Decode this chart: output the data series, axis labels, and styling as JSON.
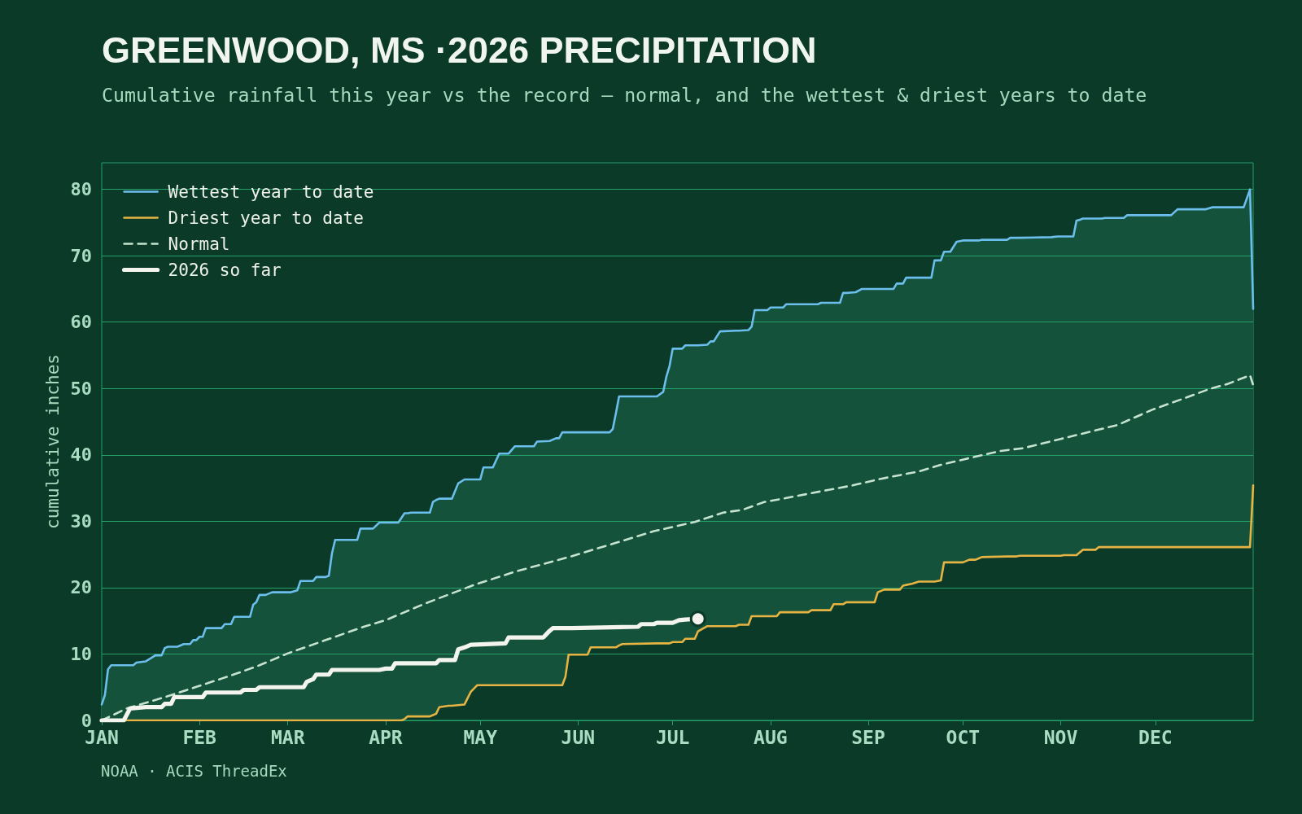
{
  "chart_data": {
    "type": "line",
    "title": "GREENWOOD, MS ·2026 PRECIPITATION",
    "subtitle": "Cumulative rainfall this year vs the record — normal, and the wettest & driest years to date",
    "ylabel": "cumulative inches",
    "annotations": [
      "NOAA · ACIS ThreadEx"
    ],
    "xlim": [
      "2026-01-01",
      "2027-01-01"
    ],
    "xticks": [
      {
        "value": "2026-01-01",
        "label": "JAN"
      },
      {
        "value": "2026-02-01",
        "label": "FEB"
      },
      {
        "value": "2026-03-01",
        "label": "MAR"
      },
      {
        "value": "2026-04-01",
        "label": "APR"
      },
      {
        "value": "2026-05-01",
        "label": "MAY"
      },
      {
        "value": "2026-06-01",
        "label": "JUN"
      },
      {
        "value": "2026-07-01",
        "label": "JUL"
      },
      {
        "value": "2026-08-01",
        "label": "AUG"
      },
      {
        "value": "2026-09-01",
        "label": "SEP"
      },
      {
        "value": "2026-10-01",
        "label": "OCT"
      },
      {
        "value": "2026-11-01",
        "label": "NOV"
      },
      {
        "value": "2026-12-01",
        "label": "DEC"
      }
    ],
    "ylim": [
      0,
      84
    ],
    "yticks": [
      0,
      10,
      20,
      30,
      40,
      50,
      60,
      70,
      80
    ],
    "grid": "y",
    "legend": "top left",
    "x": [
      "2026-01-01",
      "2026-01-02",
      "2026-01-03",
      "2026-01-04",
      "2026-01-11",
      "2026-01-12",
      "2026-01-15",
      "2026-01-18",
      "2026-01-20",
      "2026-01-21",
      "2026-01-22",
      "2026-01-25",
      "2026-01-27",
      "2026-01-29",
      "2026-01-30",
      "2026-01-31",
      "2026-02-01",
      "2026-02-02",
      "2026-02-03",
      "2026-02-08",
      "2026-02-09",
      "2026-02-11",
      "2026-02-12",
      "2026-02-17",
      "2026-02-18",
      "2026-02-19",
      "2026-02-20",
      "2026-02-22",
      "2026-02-24",
      "2026-03-02",
      "2026-03-04",
      "2026-03-05",
      "2026-03-09",
      "2026-03-10",
      "2026-03-13",
      "2026-03-14",
      "2026-03-15",
      "2026-03-16",
      "2026-03-23",
      "2026-03-24",
      "2026-03-28",
      "2026-03-30",
      "2026-04-05",
      "2026-04-06",
      "2026-04-07",
      "2026-04-08",
      "2026-04-09",
      "2026-04-15",
      "2026-04-16",
      "2026-04-17",
      "2026-04-18",
      "2026-04-21",
      "2026-04-22",
      "2026-04-24",
      "2026-04-26",
      "2026-04-28",
      "2026-04-30",
      "2026-05-01",
      "2026-05-02",
      "2026-05-05",
      "2026-05-07",
      "2026-05-10",
      "2026-05-12",
      "2026-05-18",
      "2026-05-19",
      "2026-05-23",
      "2026-05-25",
      "2026-05-26",
      "2026-05-27",
      "2026-05-28",
      "2026-05-29",
      "2026-06-04",
      "2026-06-05",
      "2026-06-11",
      "2026-06-12",
      "2026-06-13",
      "2026-06-14",
      "2026-06-15",
      "2026-06-26",
      "2026-06-28",
      "2026-06-29",
      "2026-06-30",
      "2026-07-01",
      "2026-07-04",
      "2026-07-05",
      "2026-07-08",
      "2026-07-09",
      "2026-07-12",
      "2026-07-13",
      "2026-07-14",
      "2026-07-16",
      "2026-07-21",
      "2026-07-22",
      "2026-07-25",
      "2026-07-26",
      "2026-07-27",
      "2026-07-31",
      "2026-08-01",
      "2026-08-03",
      "2026-08-04",
      "2026-08-05",
      "2026-08-06",
      "2026-08-13",
      "2026-08-14",
      "2026-08-16",
      "2026-08-17",
      "2026-08-20",
      "2026-08-21",
      "2026-08-23",
      "2026-08-24",
      "2026-08-25",
      "2026-08-28",
      "2026-08-30",
      "2026-09-03",
      "2026-09-04",
      "2026-09-06",
      "2026-09-09",
      "2026-09-10",
      "2026-09-11",
      "2026-09-12",
      "2026-09-13",
      "2026-09-15",
      "2026-09-17",
      "2026-09-21",
      "2026-09-22",
      "2026-09-24",
      "2026-09-25",
      "2026-09-27",
      "2026-09-29",
      "2026-10-01",
      "2026-10-03",
      "2026-10-05",
      "2026-10-06",
      "2026-10-07",
      "2026-10-15",
      "2026-10-16",
      "2026-10-18",
      "2026-10-19",
      "2026-10-29",
      "2026-10-31",
      "2026-11-01",
      "2026-11-02",
      "2026-11-05",
      "2026-11-06",
      "2026-11-07",
      "2026-11-08",
      "2026-11-12",
      "2026-11-13",
      "2026-11-14",
      "2026-11-15",
      "2026-11-21",
      "2026-11-22",
      "2026-12-06",
      "2026-12-08",
      "2026-12-17",
      "2026-12-19",
      "2026-12-29",
      "2026-12-31",
      "2027-01-01"
    ],
    "series": [
      {
        "name": "Wettest year to date",
        "color": "#6cbfec",
        "values": [
          2.4,
          3.8,
          7.7,
          8.3,
          8.3,
          8.7,
          8.9,
          9.8,
          9.8,
          10.9,
          11.1,
          11.1,
          11.5,
          11.5,
          12.1,
          12.1,
          12.6,
          12.6,
          13.9,
          13.9,
          14.5,
          14.5,
          15.6,
          15.6,
          17.4,
          17.8,
          18.9,
          18.9,
          19.3,
          19.3,
          19.6,
          21.0,
          21.0,
          21.6,
          21.6,
          21.8,
          25.2,
          27.2,
          27.2,
          28.9,
          28.9,
          29.8,
          29.8,
          30.5,
          31.2,
          31.2,
          31.3,
          31.3,
          32.9,
          33.2,
          33.4,
          33.4,
          33.4,
          35.7,
          36.3,
          36.3,
          36.3,
          36.3,
          38.1,
          38.1,
          40.2,
          40.2,
          41.3,
          41.3,
          42.0,
          42.1,
          42.5,
          42.5,
          43.4,
          43.4,
          43.4,
          43.4,
          43.4,
          43.4,
          43.9,
          46.3,
          48.8,
          48.8,
          48.8,
          49.5,
          51.8,
          53.4,
          56.0,
          56.0,
          56.5,
          56.5,
          56.5,
          56.6,
          57.1,
          57.1,
          58.6,
          58.7,
          58.7,
          58.8,
          59.3,
          61.8,
          61.8,
          62.2,
          62.2,
          62.2,
          62.2,
          62.7,
          62.7,
          62.7,
          62.7,
          62.9,
          62.9,
          62.9,
          62.9,
          64.4,
          64.4,
          64.5,
          65.0,
          65.0,
          65.0,
          65.0,
          65.0,
          65.8,
          65.8,
          65.8,
          66.7,
          66.7,
          66.7,
          66.7,
          69.3,
          69.3,
          70.6,
          70.6,
          72.1,
          72.3,
          72.3,
          72.3,
          72.3,
          72.4,
          72.4,
          72.7,
          72.7,
          72.7,
          72.8,
          72.9,
          72.9,
          72.9,
          72.9,
          75.3,
          75.4,
          75.6,
          75.6,
          75.6,
          75.6,
          75.7,
          75.7,
          76.1,
          76.1,
          77.0,
          77.0,
          77.3,
          77.3,
          80.0,
          62.0
        ],
        "upper": [
          2.4,
          3.8,
          7.7,
          8.3,
          8.3,
          8.7,
          8.9,
          9.8,
          9.8,
          10.9,
          11.1,
          11.1,
          11.5,
          11.5,
          12.1,
          12.1,
          12.6,
          12.6,
          13.9,
          13.9,
          14.5,
          14.5,
          15.6,
          15.6,
          17.4,
          17.8,
          18.9,
          18.9,
          19.3,
          19.3,
          19.6,
          21.0,
          21.0,
          21.6,
          21.6,
          21.8,
          25.2,
          27.2,
          27.2,
          28.9,
          28.9,
          29.8,
          29.8,
          30.5,
          31.2,
          31.2,
          31.3,
          31.3,
          32.9,
          33.2,
          33.4,
          33.4,
          33.4,
          35.7,
          36.3,
          36.3,
          36.3,
          36.3,
          38.1,
          38.1,
          40.2,
          40.2,
          41.3,
          41.3,
          42.0,
          42.1,
          42.5,
          42.5,
          43.4,
          43.4,
          43.4,
          43.4,
          43.4,
          43.4,
          43.9,
          46.3,
          48.8,
          48.8,
          48.8,
          49.5,
          51.8,
          53.4,
          56.0,
          56.0,
          56.5,
          56.5,
          56.5,
          56.6,
          57.1,
          57.1,
          58.6,
          58.7,
          58.7,
          58.8,
          59.3,
          61.8,
          61.8,
          62.2,
          62.2,
          62.2,
          62.2,
          62.7,
          62.7,
          62.7,
          62.7,
          62.9,
          62.9,
          62.9,
          62.9,
          64.4,
          64.4,
          64.5,
          65.0,
          65.0,
          65.0,
          65.0,
          65.0,
          65.8,
          65.8,
          65.8,
          66.7,
          66.7,
          66.7,
          66.7,
          69.3,
          69.3,
          70.6,
          70.6,
          72.1,
          72.3,
          72.3,
          72.3,
          72.3,
          72.4,
          72.4,
          72.7,
          72.7,
          72.7,
          72.8,
          72.9,
          72.9,
          72.9,
          72.9,
          75.3,
          75.4,
          75.6,
          75.6,
          75.6,
          75.6,
          75.7,
          75.7,
          76.1,
          76.1,
          77.0,
          77.0,
          77.3,
          77.3,
          80.0,
          62.0
        ],
        "lower": [
          0,
          0,
          0,
          0,
          0,
          0,
          0,
          0,
          0,
          0,
          0,
          0,
          0,
          0,
          0,
          0,
          0,
          0,
          0,
          0,
          0,
          0,
          0,
          0,
          0,
          0,
          0,
          0,
          0,
          0,
          0,
          0,
          0,
          0,
          0,
          0,
          0,
          0,
          0,
          0,
          0,
          0,
          0,
          0,
          0.2,
          0.6,
          0.6,
          0.6,
          0.8,
          1.0,
          2.0,
          2.2,
          2.2,
          2.3,
          2.4,
          4.3,
          5.3,
          5.3,
          5.3,
          5.3,
          5.3,
          5.3,
          5.3,
          5.3,
          5.3,
          5.3,
          5.3,
          5.3,
          5.3,
          6.6,
          9.9,
          9.9,
          11.0,
          11.0,
          11.0,
          11.0,
          11.3,
          11.5,
          11.6,
          11.6,
          11.6,
          11.6,
          11.8,
          11.8,
          12.3,
          12.3,
          13.4,
          14.2,
          14.2,
          14.2,
          14.2,
          14.2,
          14.4,
          14.4,
          15.7,
          15.7,
          15.7,
          15.7,
          15.7,
          16.3,
          16.3,
          16.3,
          16.3,
          16.6,
          16.6,
          16.6,
          16.6,
          17.5,
          17.5,
          17.5,
          17.8,
          17.8,
          17.8,
          17.8,
          19.3,
          19.7,
          19.7,
          19.7,
          19.7,
          20.3,
          20.4,
          20.6,
          20.9,
          20.9,
          20.9,
          21.1,
          23.8,
          23.8,
          23.8,
          23.8,
          24.2,
          24.2,
          24.4,
          24.6,
          24.7,
          24.7,
          24.7,
          24.8,
          24.8,
          24.8,
          24.8,
          24.9,
          24.9,
          24.9,
          25.3,
          25.7,
          25.7,
          26.1,
          26.1,
          26.1,
          26.1,
          26.1,
          26.1,
          26.1,
          26.1,
          26.1,
          26.1,
          26.1,
          35.4
        ]
      },
      {
        "name": "Driest year to date",
        "color": "#e6b443",
        "values": [
          null,
          null,
          null,
          0,
          0,
          0,
          0,
          0,
          0,
          0,
          0,
          0,
          0,
          0,
          0,
          0,
          0,
          0,
          0,
          0,
          0,
          0,
          0,
          0,
          0,
          0,
          0,
          0,
          0,
          0,
          0,
          0,
          0,
          0,
          0,
          0,
          0,
          0,
          0,
          0,
          0,
          0,
          0,
          0,
          0.2,
          0.6,
          0.6,
          0.6,
          0.8,
          1.0,
          2.0,
          2.2,
          2.2,
          2.3,
          2.4,
          4.3,
          5.3,
          5.3,
          5.3,
          5.3,
          5.3,
          5.3,
          5.3,
          5.3,
          5.3,
          5.3,
          5.3,
          5.3,
          5.3,
          6.6,
          9.9,
          9.9,
          11.0,
          11.0,
          11.0,
          11.0,
          11.3,
          11.5,
          11.6,
          11.6,
          11.6,
          11.6,
          11.8,
          11.8,
          12.3,
          12.3,
          13.4,
          14.2,
          14.2,
          14.2,
          14.2,
          14.2,
          14.4,
          14.4,
          15.7,
          15.7,
          15.7,
          15.7,
          15.7,
          16.3,
          16.3,
          16.3,
          16.3,
          16.6,
          16.6,
          16.6,
          16.6,
          17.5,
          17.5,
          17.5,
          17.8,
          17.8,
          17.8,
          17.8,
          19.3,
          19.7,
          19.7,
          19.7,
          19.7,
          20.3,
          20.4,
          20.6,
          20.9,
          20.9,
          20.9,
          21.1,
          23.8,
          23.8,
          23.8,
          23.8,
          24.2,
          24.2,
          24.4,
          24.6,
          24.7,
          24.7,
          24.7,
          24.8,
          24.8,
          24.8,
          24.8,
          24.9,
          24.9,
          24.9,
          25.3,
          25.7,
          25.7,
          26.1,
          26.1,
          26.1,
          26.1,
          26.1,
          26.1,
          26.1,
          26.1,
          26.1,
          26.1,
          26.1,
          35.4
        ]
      },
      {
        "name": "Normal",
        "color": "#c5e3cf",
        "line_style": "dashed",
        "x": [
          "2026-01-01",
          "2026-01-09",
          "2026-01-21",
          "2026-02-01",
          "2026-02-08",
          "2026-02-13",
          "2026-02-20",
          "2026-03-01",
          "2026-03-13",
          "2026-03-25",
          "2026-04-01",
          "2026-04-14",
          "2026-04-29",
          "2026-05-12",
          "2026-05-29",
          "2026-06-12",
          "2026-06-25",
          "2026-07-08",
          "2026-07-17",
          "2026-07-23",
          "2026-07-30",
          "2026-08-06",
          "2026-08-18",
          "2026-08-27",
          "2026-09-05",
          "2026-09-17",
          "2026-09-24",
          "2026-10-02",
          "2026-10-13",
          "2026-10-20",
          "2026-11-01",
          "2026-11-13",
          "2026-11-19",
          "2026-11-30",
          "2026-12-10",
          "2026-12-18",
          "2026-12-24",
          "2026-12-31",
          "2027-01-01"
        ],
        "values": [
          0,
          1.8,
          3.5,
          5.2,
          6.3,
          7.1,
          8.3,
          10.1,
          12.1,
          14.1,
          15.1,
          17.7,
          20.4,
          22.4,
          24.6,
          26.6,
          28.5,
          29.9,
          31.3,
          31.7,
          32.9,
          33.5,
          34.6,
          35.4,
          36.4,
          37.5,
          38.5,
          39.4,
          40.6,
          41.0,
          42.4,
          43.8,
          44.5,
          46.8,
          48.5,
          49.9,
          50.7,
          52.0,
          50.5
        ]
      },
      {
        "name": "2026 so far",
        "color": "#f4f4ef",
        "x": [
          "2026-01-01",
          "2026-01-08",
          "2026-01-10",
          "2026-01-15",
          "2026-01-20",
          "2026-01-21",
          "2026-01-23",
          "2026-01-24",
          "2026-02-02",
          "2026-02-03",
          "2026-02-14",
          "2026-02-15",
          "2026-02-19",
          "2026-02-20",
          "2026-03-06",
          "2026-03-07",
          "2026-03-09",
          "2026-03-10",
          "2026-03-14",
          "2026-03-15",
          "2026-03-30",
          "2026-04-01",
          "2026-04-03",
          "2026-04-04",
          "2026-04-17",
          "2026-04-18",
          "2026-04-23",
          "2026-04-24",
          "2026-04-26",
          "2026-04-28",
          "2026-05-09",
          "2026-05-10",
          "2026-05-21",
          "2026-05-23",
          "2026-05-24",
          "2026-05-30",
          "2026-06-20",
          "2026-06-21",
          "2026-06-25",
          "2026-06-26",
          "2026-07-01",
          "2026-07-03",
          "2026-07-05",
          "2026-07-09"
        ],
        "values": [
          0,
          0,
          1.8,
          2.0,
          2.0,
          2.5,
          2.5,
          3.5,
          3.5,
          4.2,
          4.2,
          4.6,
          4.6,
          5.0,
          5.0,
          5.8,
          6.2,
          6.9,
          6.9,
          7.6,
          7.6,
          7.8,
          7.8,
          8.6,
          8.6,
          9.1,
          9.1,
          10.7,
          11.0,
          11.4,
          11.6,
          12.5,
          12.5,
          13.5,
          13.9,
          13.9,
          14.1,
          14.5,
          14.5,
          14.7,
          14.7,
          15.1,
          15.2,
          15.3
        ]
      },
      {
        "type": "scatter",
        "color": "#f4f4ef",
        "marker": "circle",
        "x": [
          "2026-07-09"
        ],
        "values": [
          15.3
        ]
      }
    ]
  }
}
